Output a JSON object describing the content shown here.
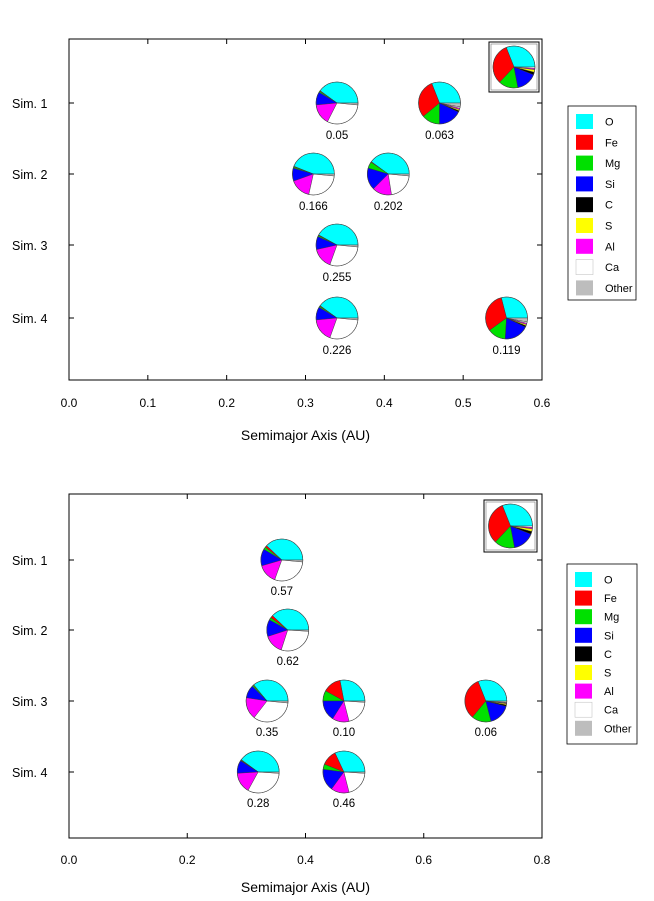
{
  "legend_colors": {
    "O": "#00ffff",
    "Fe": "#ff0000",
    "Mg": "#00e000",
    "Si": "#0000ff",
    "C": "#000000",
    "S": "#ffff00",
    "Al": "#ff00ff",
    "Ca": "#ffffff",
    "Other": "#bdbdbd"
  },
  "chart_data": [
    {
      "type": "pie-scatter",
      "xlabel": "Semimajor Axis (AU)",
      "ylabel": "",
      "xlim": [
        0.0,
        0.6
      ],
      "xticks": [
        0.0,
        0.1,
        0.2,
        0.3,
        0.4,
        0.5,
        0.6
      ],
      "xtick_labels": [
        "0.0",
        "0.1",
        "0.2",
        "0.3",
        "0.4",
        "0.5",
        "0.6"
      ],
      "rows": [
        "Sim. 1",
        "Sim. 2",
        "Sim. 3",
        "Sim. 4"
      ],
      "legend": [
        "O",
        "Fe",
        "Mg",
        "Si",
        "C",
        "S",
        "Al",
        "Ca",
        "Other"
      ],
      "reference_composition": {
        "O": 31,
        "Fe": 32,
        "Mg": 15,
        "Si": 16,
        "C": 2,
        "S": 2,
        "Al": 1,
        "Ca": 1,
        "Other": 0
      },
      "planets": [
        {
          "sim": 1,
          "a": 0.34,
          "label": "0.05",
          "composition": {
            "O": 40,
            "Fe": 0.5,
            "Mg": 1,
            "Si": 10,
            "C": 0,
            "S": 0,
            "Al": 16,
            "Ca": 31,
            "Other": 1.5
          }
        },
        {
          "sim": 1,
          "a": 0.47,
          "label": "0.063",
          "composition": {
            "O": 31,
            "Fe": 30,
            "Mg": 14,
            "Si": 18,
            "C": 1,
            "S": 1,
            "Al": 1,
            "Ca": 1,
            "Other": 3
          }
        },
        {
          "sim": 2,
          "a": 0.31,
          "label": "0.166",
          "composition": {
            "O": 44,
            "Fe": 0.5,
            "Mg": 1,
            "Si": 10,
            "C": 0,
            "S": 0,
            "Al": 16,
            "Ca": 27,
            "Other": 1.5
          }
        },
        {
          "sim": 2,
          "a": 0.405,
          "label": "0.202",
          "composition": {
            "O": 40,
            "Fe": 0.5,
            "Mg": 5,
            "Si": 17,
            "C": 0,
            "S": 0,
            "Al": 15,
            "Ca": 21,
            "Other": 1.5
          }
        },
        {
          "sim": 3,
          "a": 0.34,
          "label": "0.255",
          "composition": {
            "O": 42,
            "Fe": 0.5,
            "Mg": 1,
            "Si": 10,
            "C": 0,
            "S": 0,
            "Al": 16,
            "Ca": 29,
            "Other": 1.5
          }
        },
        {
          "sim": 4,
          "a": 0.34,
          "label": "0.226",
          "composition": {
            "O": 40,
            "Fe": 0.5,
            "Mg": 1,
            "Si": 10,
            "C": 0,
            "S": 0,
            "Al": 18,
            "Ca": 29,
            "Other": 1.5
          }
        },
        {
          "sim": 4,
          "a": 0.555,
          "label": "0.119",
          "composition": {
            "O": 29,
            "Fe": 31,
            "Mg": 14,
            "Si": 19,
            "C": 1,
            "S": 1,
            "Al": 1,
            "Ca": 1,
            "Other": 3
          }
        }
      ]
    },
    {
      "type": "pie-scatter",
      "xlabel": "Semimajor Axis (AU)",
      "ylabel": "",
      "xlim": [
        0.0,
        0.8
      ],
      "xticks": [
        0.0,
        0.2,
        0.4,
        0.6,
        0.8
      ],
      "xtick_labels": [
        "0.0",
        "0.2",
        "0.4",
        "0.6",
        "0.8"
      ],
      "rows": [
        "Sim. 1",
        "Sim. 2",
        "Sim. 3",
        "Sim. 4"
      ],
      "legend": [
        "O",
        "Fe",
        "Mg",
        "Si",
        "C",
        "S",
        "Al",
        "Ca",
        "Other"
      ],
      "reference_composition": {
        "O": 31,
        "Fe": 32,
        "Mg": 15,
        "Si": 16,
        "C": 2,
        "S": 2,
        "Al": 1,
        "Ca": 1,
        "Other": 0
      },
      "planets": [
        {
          "sim": 1,
          "a": 0.36,
          "label": "0.57",
          "composition": {
            "O": 38,
            "Fe": 1.5,
            "Mg": 2,
            "Si": 13,
            "C": 0,
            "S": 0,
            "Al": 15,
            "Ca": 29,
            "Other": 1.5
          }
        },
        {
          "sim": 2,
          "a": 0.37,
          "label": "0.62",
          "composition": {
            "O": 38,
            "Fe": 2,
            "Mg": 2,
            "Si": 13,
            "C": 0,
            "S": 0,
            "Al": 15,
            "Ca": 29,
            "Other": 1
          }
        },
        {
          "sim": 3,
          "a": 0.335,
          "label": "0.35",
          "composition": {
            "O": 36,
            "Fe": 0.5,
            "Mg": 1,
            "Si": 10,
            "C": 0,
            "S": 0,
            "Al": 17,
            "Ca": 34,
            "Other": 1.5
          }
        },
        {
          "sim": 3,
          "a": 0.465,
          "label": "0.10",
          "composition": {
            "O": 28,
            "Fe": 14,
            "Mg": 8,
            "Si": 16,
            "C": 0,
            "S": 0,
            "Al": 13,
            "Ca": 20,
            "Other": 1
          }
        },
        {
          "sim": 3,
          "a": 0.705,
          "label": "0.06",
          "composition": {
            "O": 31,
            "Fe": 33,
            "Mg": 15,
            "Si": 17,
            "C": 1,
            "S": 1,
            "Al": 0.5,
            "Ca": 0.5,
            "Other": 1
          }
        },
        {
          "sim": 4,
          "a": 0.32,
          "label": "0.28",
          "composition": {
            "O": 40,
            "Fe": 0.5,
            "Mg": 0.5,
            "Si": 10,
            "C": 0,
            "S": 0,
            "Al": 16,
            "Ca": 32,
            "Other": 1
          }
        },
        {
          "sim": 4,
          "a": 0.465,
          "label": "0.46",
          "composition": {
            "O": 32,
            "Fe": 12,
            "Mg": 4,
            "Si": 17,
            "C": 0,
            "S": 0,
            "Al": 14,
            "Ca": 20,
            "Other": 1
          }
        }
      ]
    }
  ]
}
